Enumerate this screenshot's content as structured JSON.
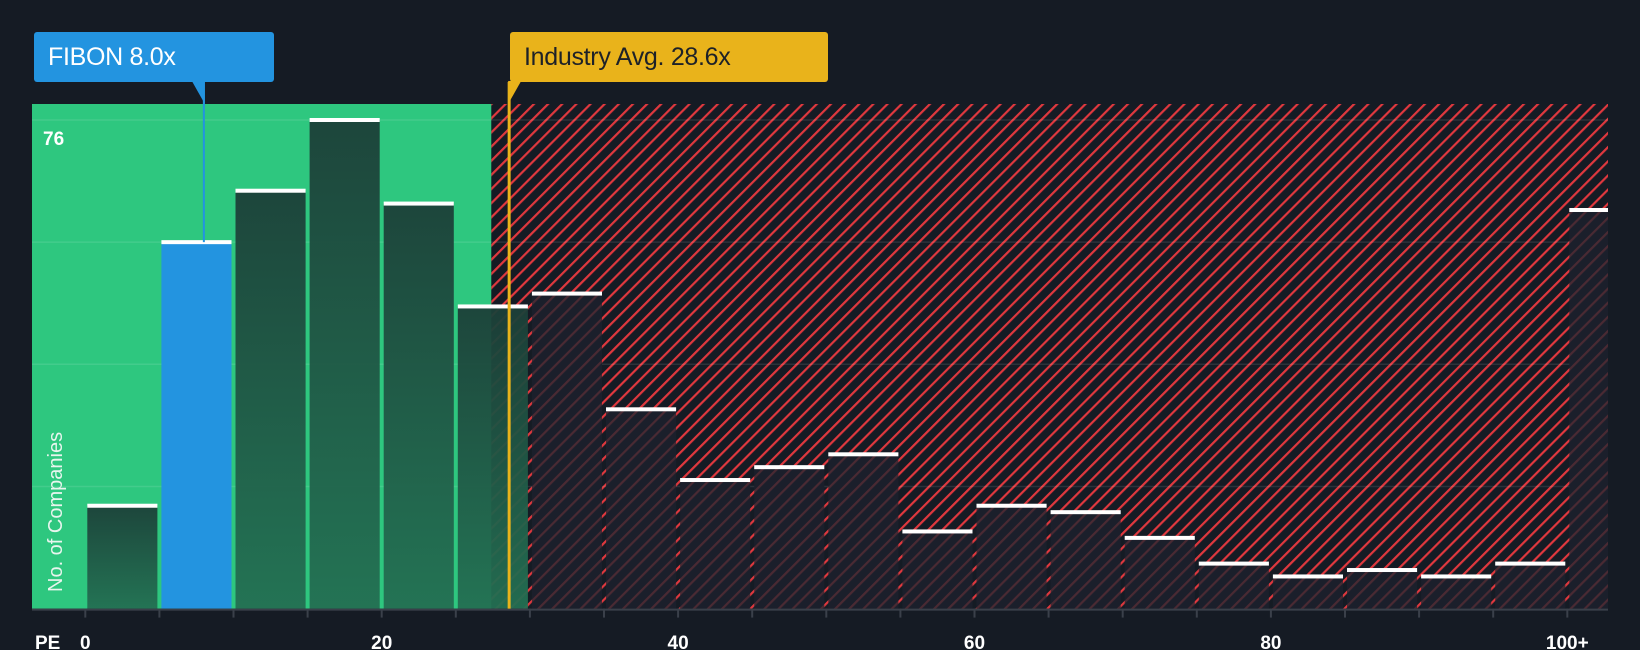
{
  "chart_data": {
    "type": "bar",
    "title": "",
    "xlabel": "PE",
    "ylabel": "No. of Companies",
    "bin_width": 5,
    "bins": [
      0,
      5,
      10,
      15,
      20,
      25,
      30,
      35,
      40,
      45,
      50,
      55,
      60,
      65,
      70,
      75,
      80,
      85,
      90,
      95,
      100
    ],
    "values": [
      16,
      57,
      65,
      76,
      63,
      47,
      49,
      31,
      20,
      22,
      24,
      12,
      16,
      15,
      11,
      7,
      5,
      6,
      5,
      7,
      62
    ],
    "highlight_bin": 5,
    "x_ticks": [
      {
        "value": 0,
        "label": "0"
      },
      {
        "value": 20,
        "label": "20"
      },
      {
        "value": 40,
        "label": "40"
      },
      {
        "value": 60,
        "label": "60"
      },
      {
        "value": 80,
        "label": "80"
      },
      {
        "value": 100,
        "label": "100+"
      }
    ],
    "y_max_label": "76",
    "ylim": [
      0,
      76
    ],
    "grid": true,
    "fair_zone_end": 27.4,
    "markers": [
      {
        "name": "FIBON",
        "value": 8.0,
        "label": "FIBON 8.0x",
        "color": "#2394e0"
      },
      {
        "name": "Industry Avg.",
        "value": 28.6,
        "label": "Industry Avg. 28.6x",
        "color": "#e9b31b"
      }
    ]
  },
  "colors": {
    "background": "#151b24",
    "green": "#2ec77f",
    "red": "#e0383e",
    "blue": "#2394e0",
    "yellow": "#e9b31b"
  }
}
